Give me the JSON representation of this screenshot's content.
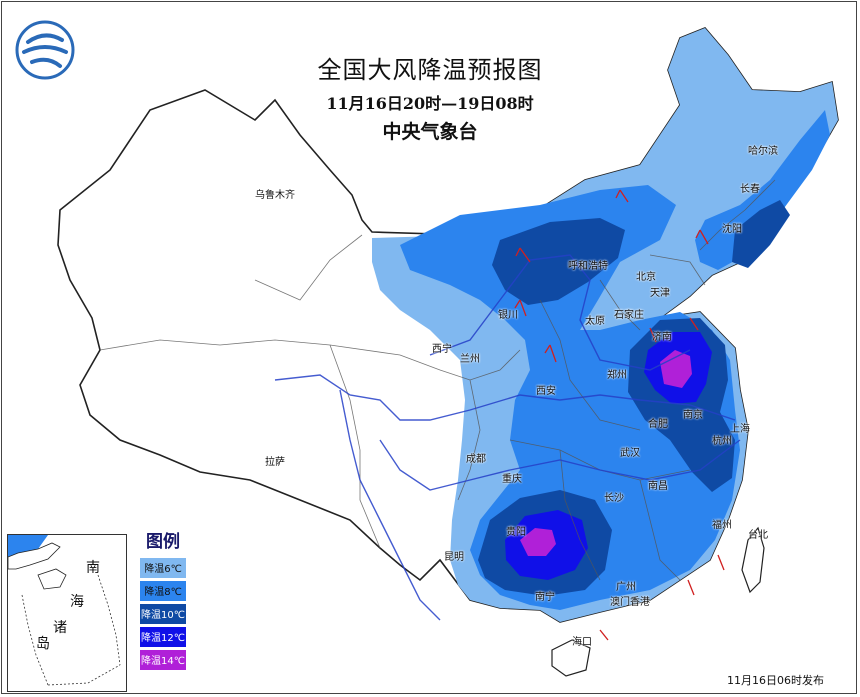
{
  "title": "全国大风降温预报图",
  "period": "11月16日20时—19日08时",
  "agency": "中央气象台",
  "issue_time": "11月16日06时发布",
  "legend": {
    "title": "图例",
    "items": [
      {
        "label": "降温6℃",
        "color": "#80b8f0"
      },
      {
        "label": "降温8℃",
        "color": "#2c84ee"
      },
      {
        "label": "降温10℃",
        "color": "#0f4aa4"
      },
      {
        "label": "降温12℃",
        "color": "#1010e8"
      },
      {
        "label": "降温14℃",
        "color": "#b020d8"
      }
    ]
  },
  "cities": {
    "urumqi": "乌鲁木齐",
    "harbin": "哈尔滨",
    "changchun": "长春",
    "shenyang": "沈阳",
    "hohhot": "呼和浩特",
    "beijing": "北京",
    "tianjin": "天津",
    "yinchuan": "银川",
    "taiyuan": "太原",
    "shijiazhuang": "石家庄",
    "jinan": "济南",
    "xining": "西宁",
    "lanzhou": "兰州",
    "zhengzhou": "郑州",
    "xian": "西安",
    "hefei": "合肥",
    "nanjing": "南京",
    "shanghai": "上海",
    "hangzhou": "杭州",
    "wuhan": "武汉",
    "chengdu": "成都",
    "chongqing": "重庆",
    "lhasa": "拉萨",
    "changsha": "长沙",
    "nanchang": "南昌",
    "guiyang": "贵阳",
    "fuzhou": "福州",
    "kunming": "昆明",
    "taipei": "台北",
    "guangzhou": "广州",
    "nanning": "南宁",
    "macau_hk": "澳门香港",
    "haikou": "海口"
  },
  "inset": {
    "chars": [
      "南",
      "海",
      "诸",
      "岛"
    ]
  }
}
